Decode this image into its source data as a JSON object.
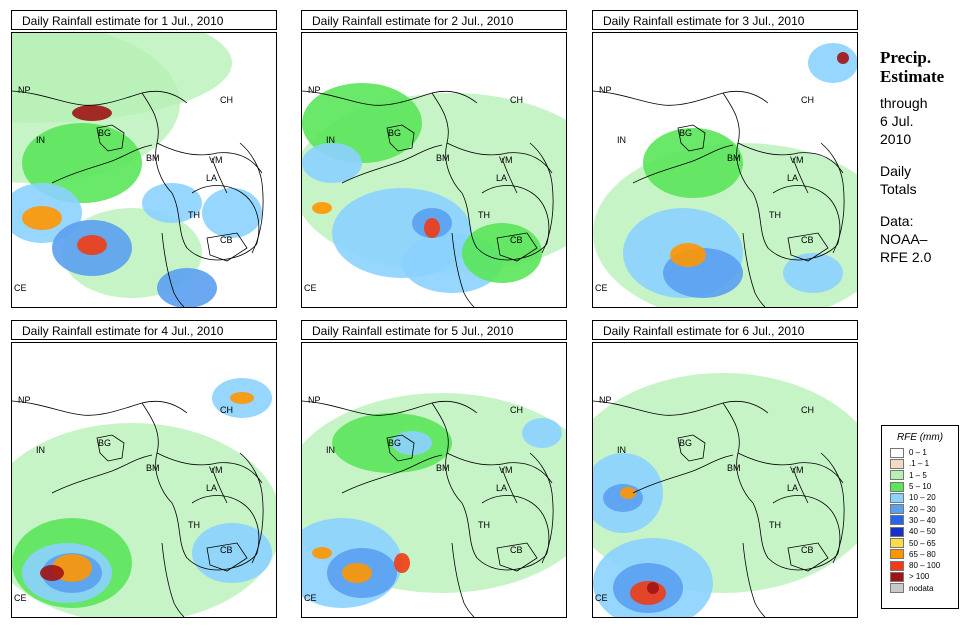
{
  "panels": [
    {
      "title": "Daily Rainfall estimate for  1 Jul., 2010"
    },
    {
      "title": "Daily Rainfall estimate for  2 Jul., 2010"
    },
    {
      "title": "Daily Rainfall estimate for  3 Jul., 2010"
    },
    {
      "title": "Daily Rainfall estimate for  4 Jul., 2010"
    },
    {
      "title": "Daily Rainfall estimate for  5 Jul., 2010"
    },
    {
      "title": "Daily Rainfall estimate for  6 Jul., 2010"
    }
  ],
  "country_labels": [
    "NP",
    "CH",
    "IN",
    "BG",
    "BM",
    "VM",
    "LA",
    "TH",
    "CB",
    "CE"
  ],
  "sidebar": {
    "heading_line1": "Precip.",
    "heading_line2": "Estimate",
    "through": "through",
    "date_line1": "6 Jul.",
    "date_line2": "2010",
    "daily_line1": "Daily",
    "daily_line2": "Totals",
    "data_line1": "Data:",
    "data_line2": "NOAA–",
    "data_line3": "RFE 2.0"
  },
  "legend": {
    "title": "RFE (mm)",
    "items": [
      {
        "label": "0 – 1",
        "color": "#ffffff"
      },
      {
        "label": ".1 – 1",
        "color": "#f0dcc4"
      },
      {
        "label": "1 – 5",
        "color": "#b4f0b4"
      },
      {
        "label": "5 – 10",
        "color": "#5ae65a"
      },
      {
        "label": "10 – 20",
        "color": "#8cd2ff"
      },
      {
        "label": "20 – 30",
        "color": "#5aa0f0"
      },
      {
        "label": "30 – 40",
        "color": "#2864e6"
      },
      {
        "label": "40 – 50",
        "color": "#1432c8"
      },
      {
        "label": "50 – 65",
        "color": "#ffdc46"
      },
      {
        "label": "65 – 80",
        "color": "#ff9600"
      },
      {
        "label": "80 – 100",
        "color": "#f03c14"
      },
      {
        "label": "> 100",
        "color": "#a01414"
      },
      {
        "label": "nodata",
        "color": "#c8c8c8"
      }
    ]
  }
}
